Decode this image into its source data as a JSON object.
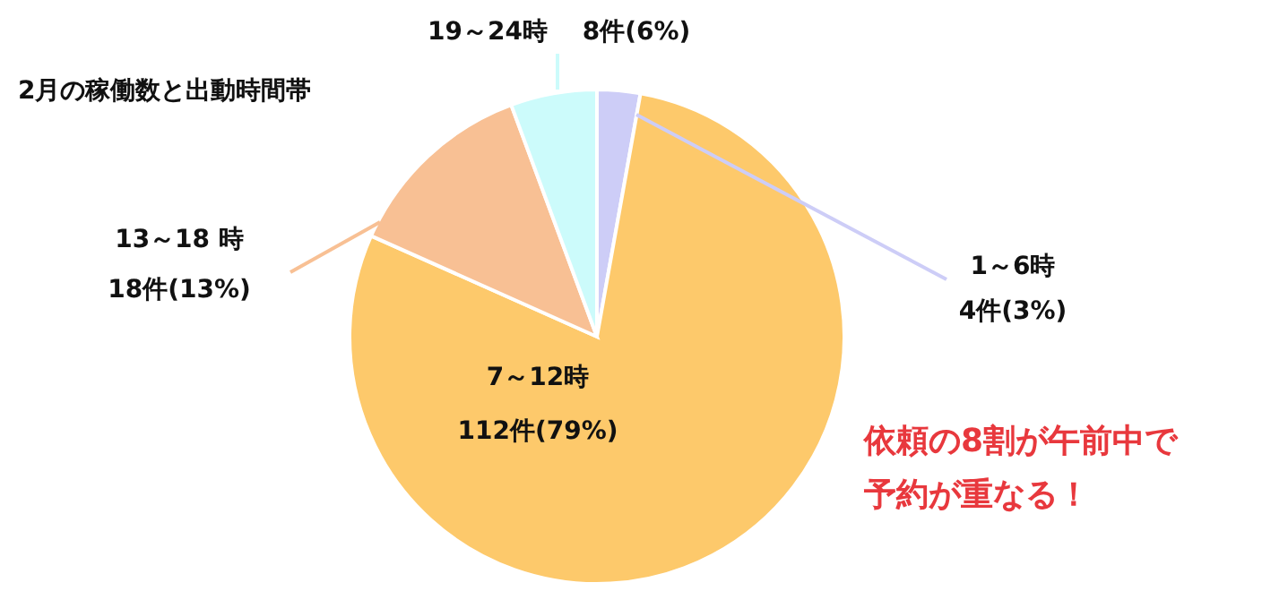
{
  "chart_data": {
    "type": "pie",
    "title": "2月の稼働数と出動時間帯",
    "categories": [
      "1～6時",
      "7～12時",
      "13～18 時",
      "19～24時"
    ],
    "values": [
      4,
      112,
      18,
      8
    ],
    "value_labels": [
      "4件(3%)",
      "112件(79%)",
      "18件(13%)",
      "8件(6%)"
    ],
    "colors": [
      "#cdcdf7",
      "#fdc96b",
      "#f8c094",
      "#ccfbfb"
    ],
    "annotations": [
      "依頼の8割が午前中で",
      "予約が重なる！"
    ]
  }
}
